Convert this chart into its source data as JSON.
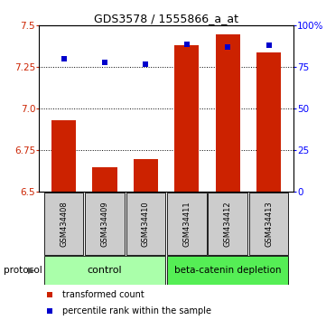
{
  "title": "GDS3578 / 1555866_a_at",
  "samples": [
    "GSM434408",
    "GSM434409",
    "GSM434410",
    "GSM434411",
    "GSM434412",
    "GSM434413"
  ],
  "transformed_count": [
    6.93,
    6.65,
    6.7,
    7.38,
    7.45,
    7.34
  ],
  "percentile_rank": [
    80,
    78,
    77,
    89,
    87,
    88
  ],
  "bar_color": "#cc2200",
  "point_color": "#0000cc",
  "ylim_left": [
    6.5,
    7.5
  ],
  "ylim_right": [
    0,
    100
  ],
  "yticks_left": [
    6.5,
    6.75,
    7.0,
    7.25,
    7.5
  ],
  "yticks_right": [
    0,
    25,
    50,
    75,
    100
  ],
  "ytick_labels_right": [
    "0",
    "25",
    "50",
    "75",
    "100%"
  ],
  "grid_lines": [
    6.75,
    7.0,
    7.25
  ],
  "control_label": "control",
  "treatment_label": "beta-catenin depletion",
  "control_color": "#aaffaa",
  "treatment_color": "#55ee55",
  "protocol_label": "protocol",
  "legend_red": "transformed count",
  "legend_blue": "percentile rank within the sample",
  "bar_bottom": 6.5,
  "bar_width": 0.6
}
